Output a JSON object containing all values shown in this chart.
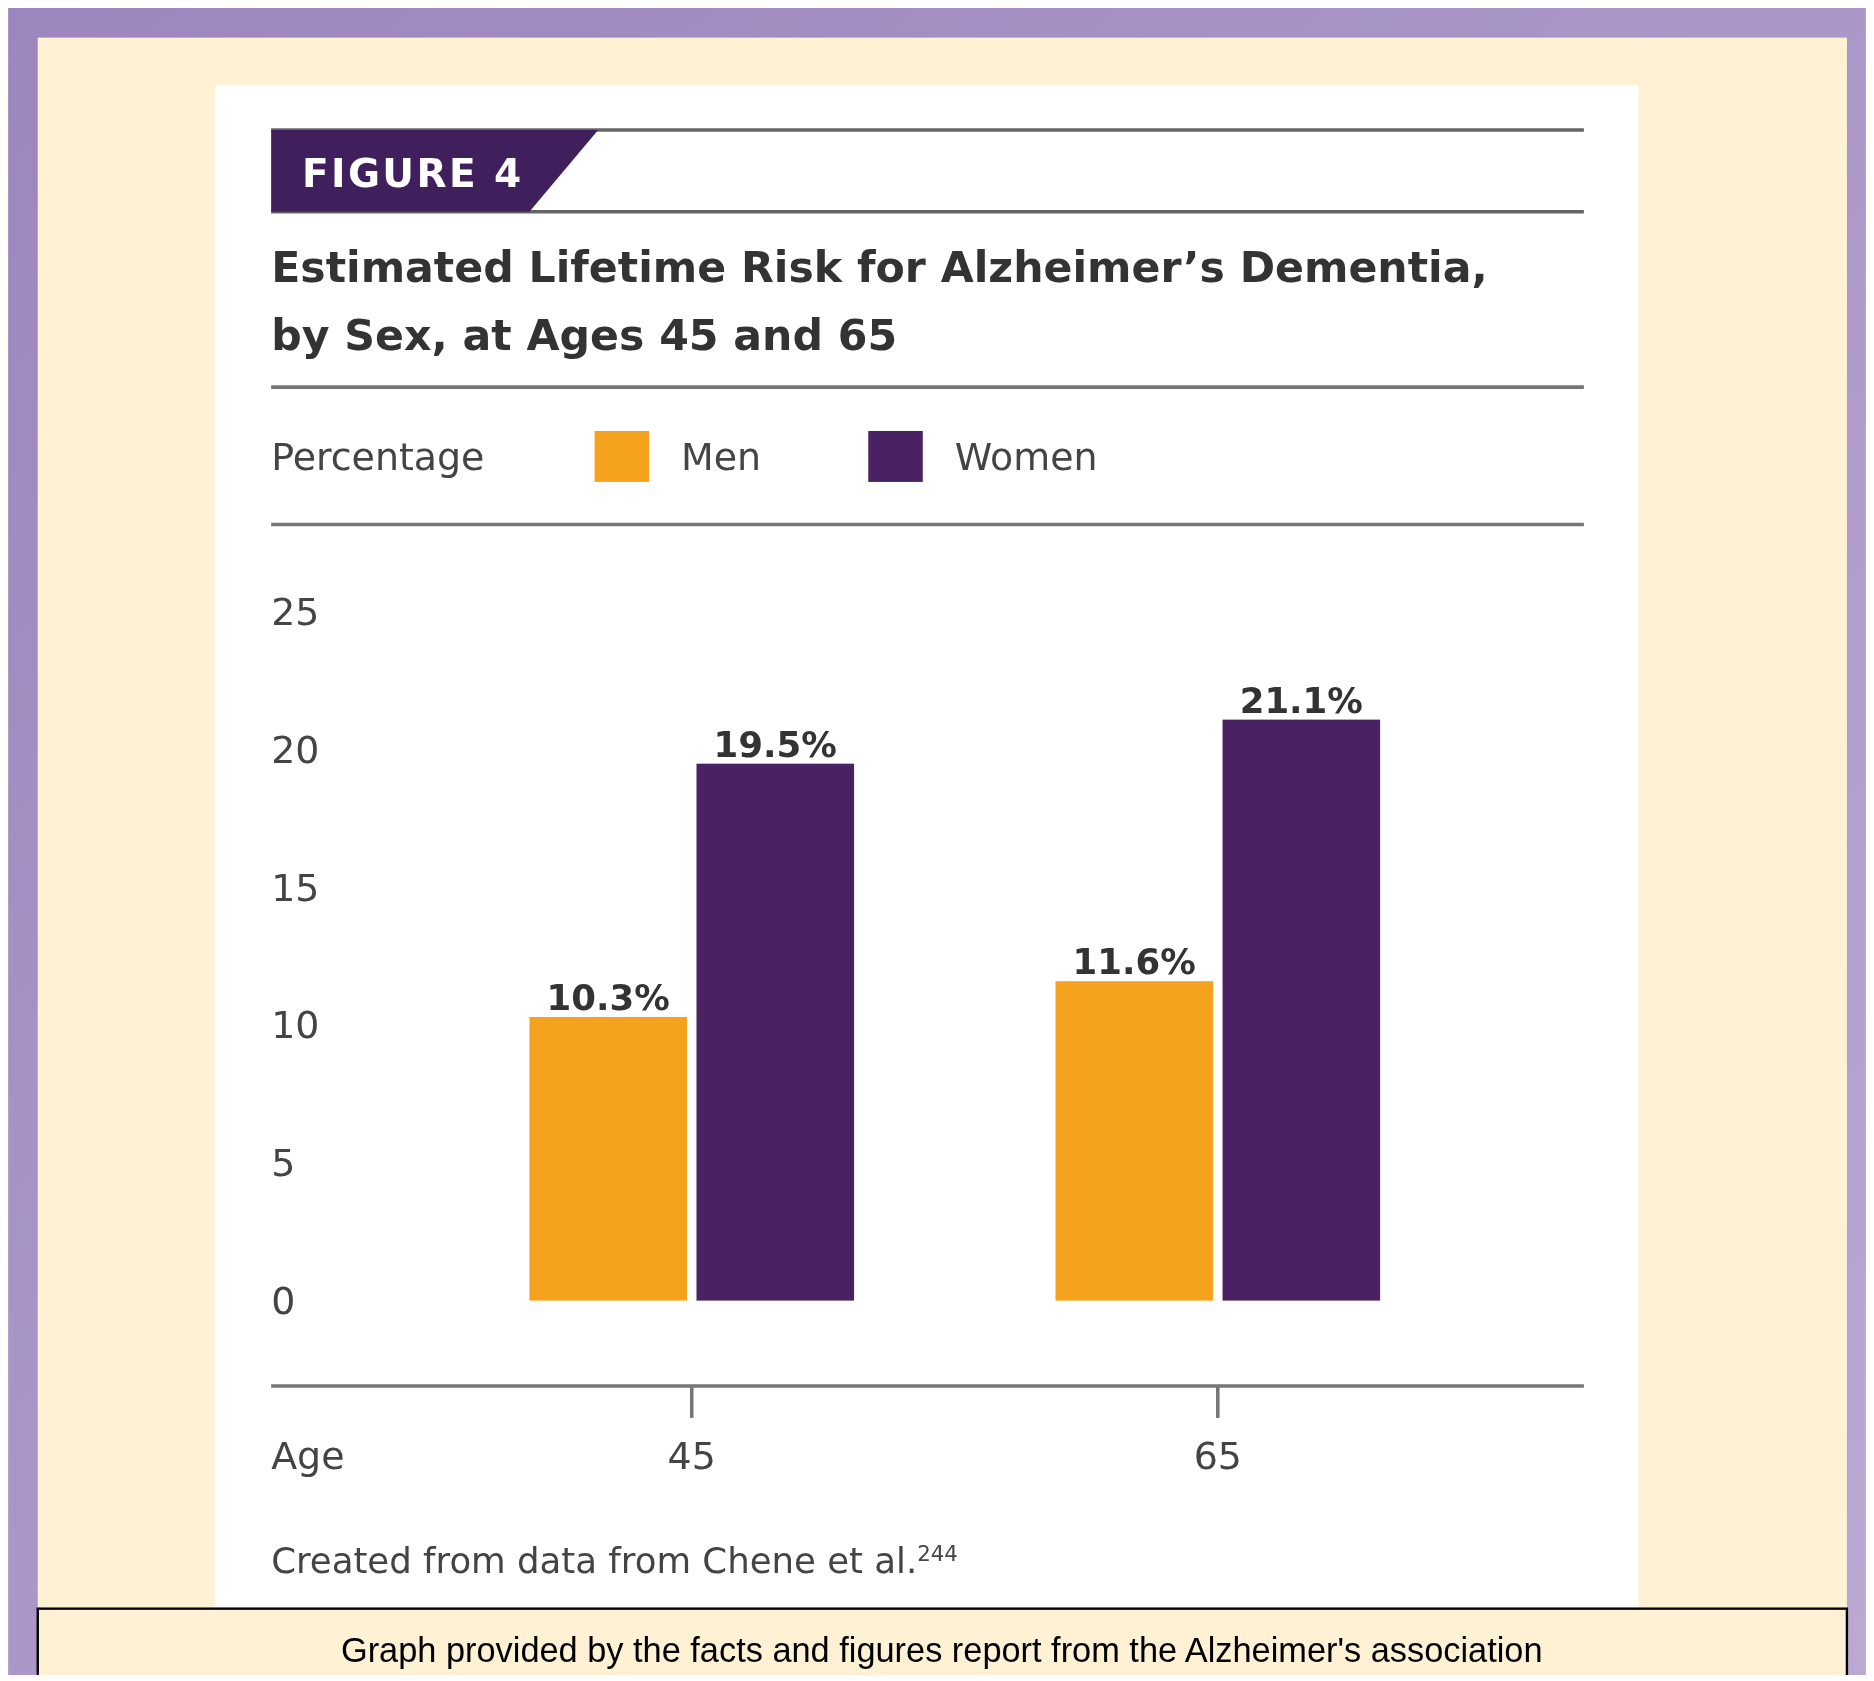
{
  "chart_data": {
    "type": "bar",
    "title": "Estimated Lifetime Risk for Alzheimer’s Dementia,\nby Sex, at Ages 45 and 65",
    "ylabel": "Percentage",
    "xlabel": "Age",
    "categories": [
      "45",
      "65"
    ],
    "series": [
      {
        "name": "Men",
        "color": "#f5a31f",
        "values": [
          10.3,
          11.6
        ],
        "value_labels": [
          "10.3%",
          "11.6%"
        ]
      },
      {
        "name": "Women",
        "color": "#4a2163",
        "values": [
          19.5,
          21.1
        ],
        "value_labels": [
          "19.5%",
          "21.1%"
        ]
      }
    ],
    "ylim": [
      0,
      25
    ],
    "yticks": [
      0,
      5,
      10,
      15,
      20,
      25
    ],
    "grid": false,
    "legend": "top left",
    "annotations": [
      "FIGURE 4",
      "Created from data from Chene et al.$^{244}$",
      "Graph provided by the facts and figures report from the Alzheimer's association"
    ]
  }
}
